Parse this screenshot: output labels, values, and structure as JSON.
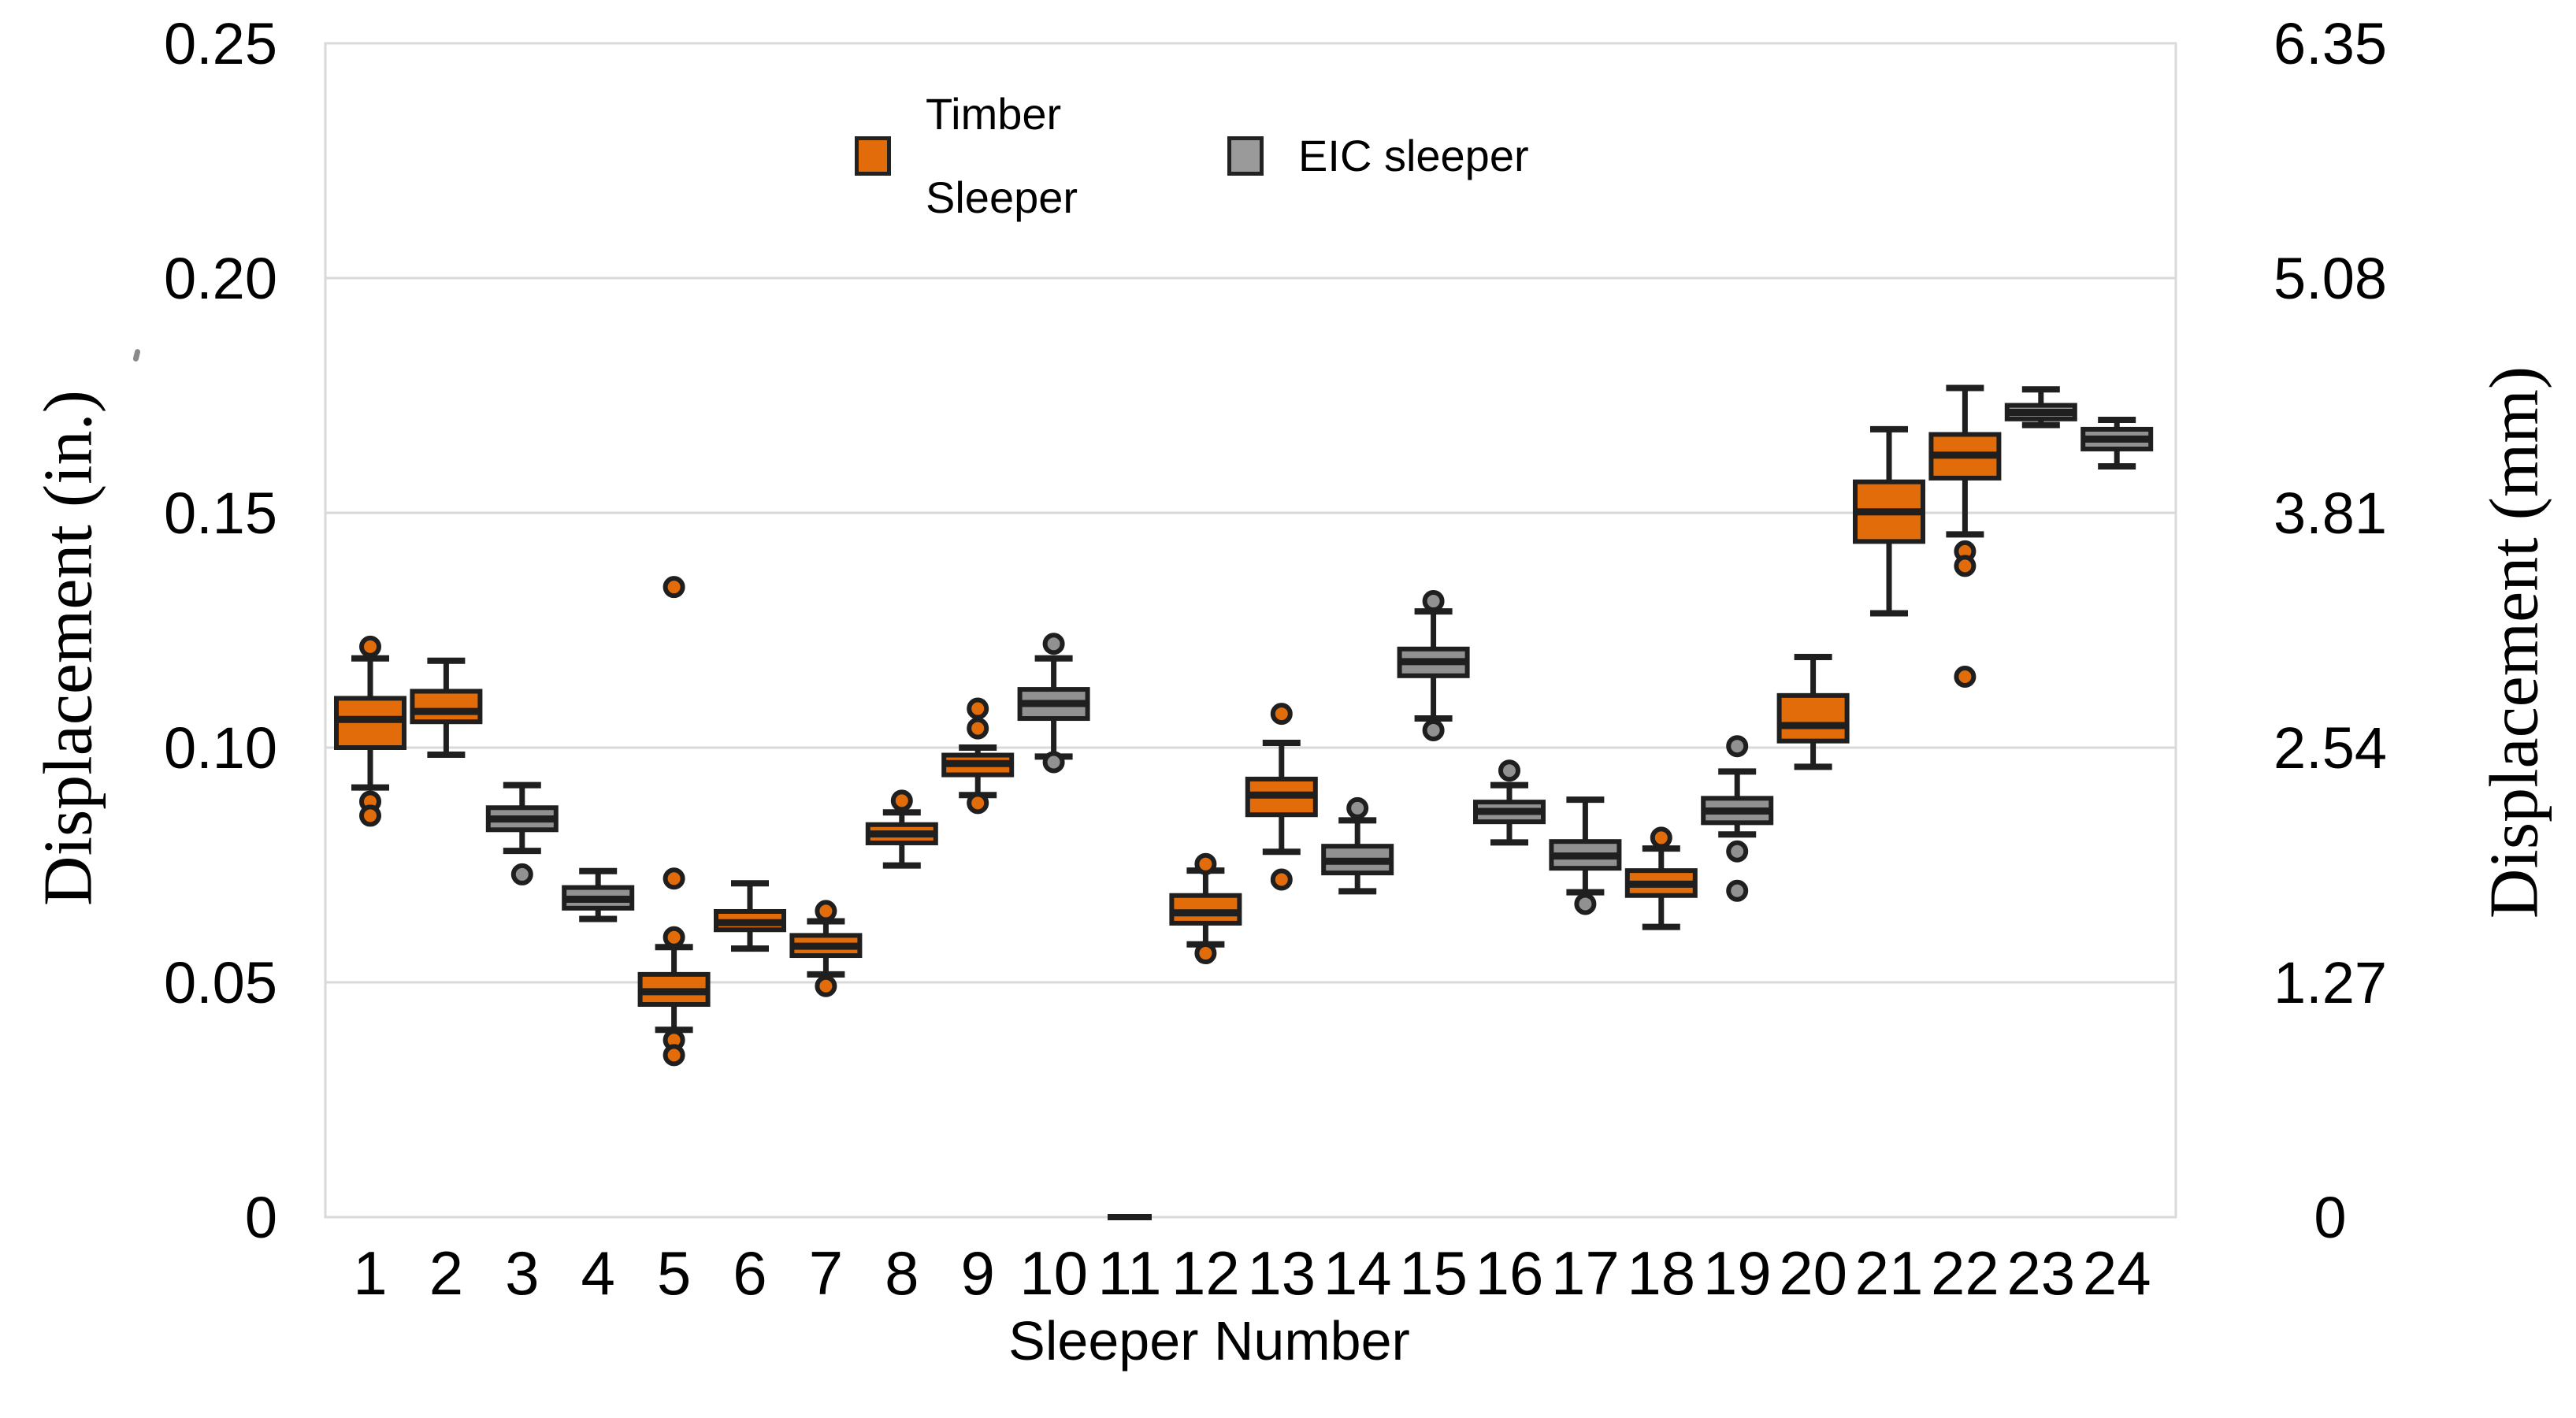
{
  "legend": {
    "timber_label": "Timber\nSleeper",
    "eic_label": "EIC sleeper"
  },
  "axes": {
    "left_title": "Displacement (in.)",
    "right_title": "Displacement (mm)",
    "x_title": "Sleeper Number"
  },
  "chart_data": {
    "type": "boxplot",
    "xlabel": "Sleeper Number",
    "ylabel_left": "Displacement (in.)",
    "ylabel_right": "Displacement (mm)",
    "ylim_in": [
      0,
      0.25
    ],
    "grid": true,
    "legend_position": "top-center",
    "y_ticks": [
      {
        "value": 0.25,
        "in_label": "0.25",
        "mm_label": "6.35"
      },
      {
        "value": 0.2,
        "in_label": "0.20",
        "mm_label": "5.08"
      },
      {
        "value": 0.15,
        "in_label": "0.15",
        "mm_label": "3.81"
      },
      {
        "value": 0.1,
        "in_label": "0.10",
        "mm_label": "2.54"
      },
      {
        "value": 0.05,
        "in_label": "0.05",
        "mm_label": "1.27"
      },
      {
        "value": 0.0,
        "in_label": "0",
        "mm_label": "0"
      }
    ],
    "categories": [
      "1",
      "2",
      "3",
      "4",
      "5",
      "6",
      "7",
      "8",
      "9",
      "10",
      "11",
      "12",
      "13",
      "14",
      "15",
      "16",
      "17",
      "18",
      "19",
      "20",
      "21",
      "22",
      "23",
      "24"
    ],
    "series": [
      {
        "id": "timber",
        "label": "Timber Sleeper",
        "color": "#E26C09"
      },
      {
        "id": "eic",
        "label": "EIC sleeper",
        "color": "#919191"
      }
    ],
    "stroke_color": "#1F1F1F",
    "grid_color": "#D9D9D9",
    "boxes": [
      {
        "sleeper": "1",
        "series": "timber",
        "q1": 0.1,
        "median": 0.106,
        "q3": 0.1105,
        "whisker_low": 0.0915,
        "whisker_high": 0.119,
        "outliers": [
          0.1215,
          0.0885,
          0.0855
        ]
      },
      {
        "sleeper": "2",
        "series": "timber",
        "q1": 0.1055,
        "median": 0.1077,
        "q3": 0.112,
        "whisker_low": 0.0985,
        "whisker_high": 0.1185,
        "outliers": []
      },
      {
        "sleeper": "3",
        "series": "eic",
        "q1": 0.0825,
        "median": 0.0848,
        "q3": 0.0872,
        "whisker_low": 0.078,
        "whisker_high": 0.092,
        "outliers": [
          0.073
        ]
      },
      {
        "sleeper": "4",
        "series": "eic",
        "q1": 0.0658,
        "median": 0.0677,
        "q3": 0.0702,
        "whisker_low": 0.0635,
        "whisker_high": 0.0737,
        "outliers": []
      },
      {
        "sleeper": "5",
        "series": "timber",
        "q1": 0.0453,
        "median": 0.048,
        "q3": 0.0517,
        "whisker_low": 0.0399,
        "whisker_high": 0.0575,
        "outliers": [
          0.1342,
          0.0721,
          0.0596,
          0.0377,
          0.0345
        ]
      },
      {
        "sleeper": "6",
        "series": "timber",
        "q1": 0.0612,
        "median": 0.0627,
        "q3": 0.0651,
        "whisker_low": 0.0572,
        "whisker_high": 0.0711,
        "outliers": []
      },
      {
        "sleeper": "7",
        "series": "timber",
        "q1": 0.0557,
        "median": 0.0577,
        "q3": 0.06,
        "whisker_low": 0.0517,
        "whisker_high": 0.063,
        "outliers": [
          0.0652,
          0.0492
        ]
      },
      {
        "sleeper": "8",
        "series": "timber",
        "q1": 0.0797,
        "median": 0.0816,
        "q3": 0.0836,
        "whisker_low": 0.0749,
        "whisker_high": 0.0862,
        "outliers": [
          0.0887
        ]
      },
      {
        "sleeper": "9",
        "series": "timber",
        "q1": 0.0942,
        "median": 0.0966,
        "q3": 0.0984,
        "whisker_low": 0.0899,
        "whisker_high": 0.1,
        "outliers": [
          0.1083,
          0.1041,
          0.0882
        ]
      },
      {
        "sleeper": "10",
        "series": "eic",
        "q1": 0.1062,
        "median": 0.1094,
        "q3": 0.1124,
        "whisker_low": 0.0981,
        "whisker_high": 0.119,
        "outliers": [
          0.1221,
          0.0969
        ]
      },
      {
        "sleeper": "11",
        "series": "flat",
        "q1": 0,
        "median": 0,
        "q3": 0,
        "whisker_low": 0,
        "whisker_high": 0,
        "outliers": []
      },
      {
        "sleeper": "12",
        "series": "timber",
        "q1": 0.0626,
        "median": 0.0648,
        "q3": 0.0685,
        "whisker_low": 0.0581,
        "whisker_high": 0.0738,
        "outliers": [
          0.0752,
          0.0562
        ]
      },
      {
        "sleeper": "13",
        "series": "timber",
        "q1": 0.0857,
        "median": 0.0899,
        "q3": 0.0933,
        "whisker_low": 0.0778,
        "whisker_high": 0.101,
        "outliers": [
          0.1072,
          0.0719
        ]
      },
      {
        "sleeper": "14",
        "series": "eic",
        "q1": 0.0733,
        "median": 0.0758,
        "q3": 0.079,
        "whisker_low": 0.0694,
        "whisker_high": 0.0845,
        "outliers": [
          0.0871
        ]
      },
      {
        "sleeper": "15",
        "series": "eic",
        "q1": 0.1153,
        "median": 0.1183,
        "q3": 0.121,
        "whisker_low": 0.1062,
        "whisker_high": 0.129,
        "outliers": [
          0.1312,
          0.1037
        ]
      },
      {
        "sleeper": "16",
        "series": "eic",
        "q1": 0.0842,
        "median": 0.0864,
        "q3": 0.0884,
        "whisker_low": 0.0798,
        "whisker_high": 0.092,
        "outliers": [
          0.0951
        ]
      },
      {
        "sleeper": "17",
        "series": "eic",
        "q1": 0.0743,
        "median": 0.0769,
        "q3": 0.08,
        "whisker_low": 0.0692,
        "whisker_high": 0.0889,
        "outliers": [
          0.0667
        ]
      },
      {
        "sleeper": "18",
        "series": "timber",
        "q1": 0.0685,
        "median": 0.0709,
        "q3": 0.0738,
        "whisker_low": 0.0618,
        "whisker_high": 0.0785,
        "outliers": [
          0.0808
        ]
      },
      {
        "sleeper": "19",
        "series": "eic",
        "q1": 0.084,
        "median": 0.0865,
        "q3": 0.0892,
        "whisker_low": 0.0815,
        "whisker_high": 0.0949,
        "outliers": [
          0.1003,
          0.0779,
          0.0695
        ]
      },
      {
        "sleeper": "20",
        "series": "timber",
        "q1": 0.1014,
        "median": 0.1047,
        "q3": 0.1111,
        "whisker_low": 0.0959,
        "whisker_high": 0.1193,
        "outliers": []
      },
      {
        "sleeper": "21",
        "series": "timber",
        "q1": 0.1439,
        "median": 0.1502,
        "q3": 0.1566,
        "whisker_low": 0.1286,
        "whisker_high": 0.1678,
        "outliers": []
      },
      {
        "sleeper": "22",
        "series": "timber",
        "q1": 0.1574,
        "median": 0.1623,
        "q3": 0.1667,
        "whisker_low": 0.1454,
        "whisker_high": 0.1766,
        "outliers": [
          0.1418,
          0.1387,
          0.1151
        ]
      },
      {
        "sleeper": "23",
        "series": "eic",
        "q1": 0.17,
        "median": 0.1714,
        "q3": 0.1729,
        "whisker_low": 0.1687,
        "whisker_high": 0.1763,
        "outliers": []
      },
      {
        "sleeper": "24",
        "series": "eic",
        "q1": 0.1636,
        "median": 0.1657,
        "q3": 0.1678,
        "whisker_low": 0.1599,
        "whisker_high": 0.1698,
        "outliers": []
      }
    ]
  }
}
